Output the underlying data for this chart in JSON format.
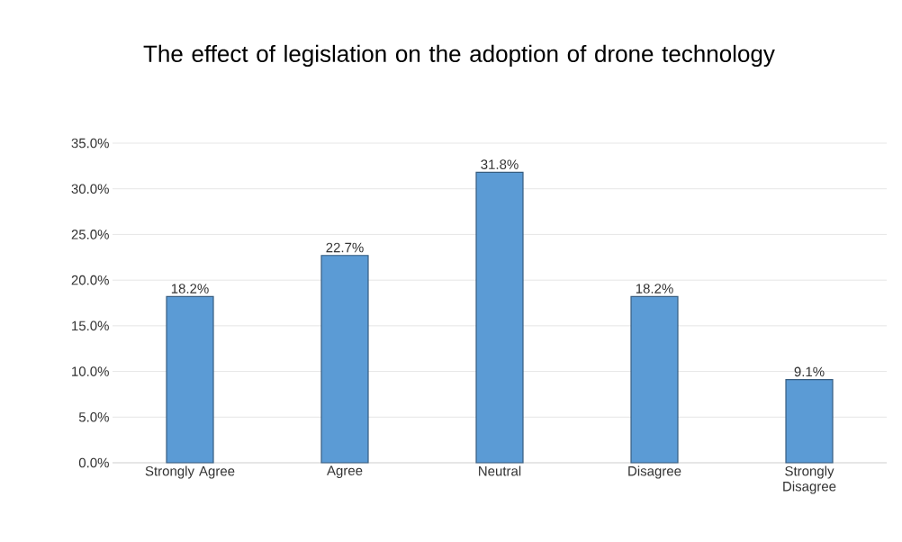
{
  "chart_data": {
    "type": "bar",
    "title": "The effect of legislation on the adoption of drone technology",
    "categories": [
      "Strongly Agree",
      "Agree",
      "Neutral",
      "Disagree",
      "Strongly Disagree"
    ],
    "values": [
      18.2,
      22.7,
      31.8,
      18.2,
      9.1
    ],
    "value_labels": [
      "18.2%",
      "22.7%",
      "31.8%",
      "18.2%",
      "9.1%"
    ],
    "color": "#5b9bd5",
    "ylim": [
      0,
      35
    ],
    "yticks": [
      {
        "value": 0,
        "label": "0.0%"
      },
      {
        "value": 5,
        "label": "5.0%"
      },
      {
        "value": 10,
        "label": "10.0%"
      },
      {
        "value": 15,
        "label": "15.0%"
      },
      {
        "value": 20,
        "label": "20.0%"
      },
      {
        "value": 25,
        "label": "25.0%"
      },
      {
        "value": 30,
        "label": "30.0%"
      },
      {
        "value": 35,
        "label": "35.0%"
      }
    ],
    "grid": "y"
  }
}
